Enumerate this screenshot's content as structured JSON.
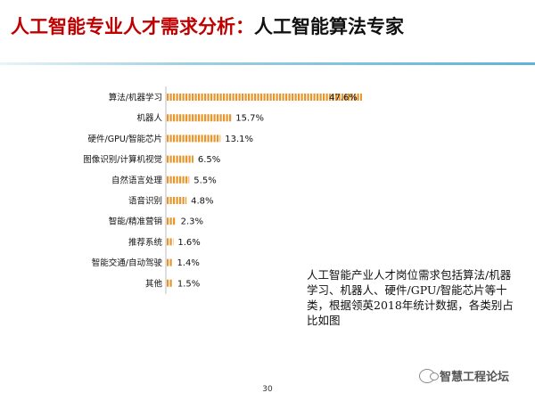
{
  "header": {
    "title_red": "人工智能专业人才需求分析：",
    "title_black": "人工智能算法专家"
  },
  "note": "人工智能产业人才岗位需求包括算法/机器学习、机器人、硬件/GPU/智能芯片等十类，根据领英2018年统计数据，各类别占比如图",
  "watermark": "智慧工程论坛",
  "page_number": "30",
  "colors": {
    "bar": "#e8962c",
    "title_red": "#c00000",
    "axis": "#bdbdbd"
  },
  "chart_data": {
    "type": "bar",
    "orientation": "horizontal",
    "categories": [
      "算法/机器学习",
      "机器人",
      "硬件/GPU/智能芯片",
      "图像识别/计算机视觉",
      "自然语言处理",
      "语音识别",
      "智能/精准营销",
      "推荐系统",
      "智能交通/自动驾驶",
      "其他"
    ],
    "values": [
      47.6,
      15.7,
      13.1,
      6.5,
      5.5,
      4.8,
      2.3,
      1.6,
      1.4,
      1.5
    ],
    "labels": [
      "47.6%",
      "15.7%",
      "13.1%",
      "6.5%",
      "5.5%",
      "4.8%",
      "2.3%",
      "1.6%",
      "1.4%",
      "1.5%"
    ],
    "unit": "%",
    "xlim": [
      0,
      50
    ],
    "grid": false,
    "bar_style": "dashed"
  }
}
